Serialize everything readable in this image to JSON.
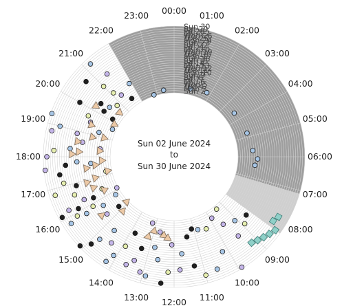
{
  "chart_data": {
    "type": "scatter",
    "subtype": "radial-clock",
    "center_line1": "Sun 02 June 2024",
    "center_line2": "to",
    "center_line3": "Sun 30 June 2024",
    "hour_labels": [
      "00:00",
      "01:00",
      "02:00",
      "03:00",
      "04:00",
      "05:00",
      "06:00",
      "07:00",
      "08:00",
      "09:00",
      "10:00",
      "11:00",
      "12:00",
      "13:00",
      "14:00",
      "15:00",
      "16:00",
      "17:00",
      "18:00",
      "19:00",
      "20:00",
      "21:00",
      "22:00",
      "23:00"
    ],
    "day_labels": [
      "Sun 2",
      "Mon 3",
      "Tue 4",
      "Wed 5",
      "Thu 6",
      "Fri 7",
      "Sat 8",
      "Sun 9",
      "Mon 10",
      "Tue 11",
      "Wed 12",
      "Thu 13",
      "Fri 14",
      "Sat 15",
      "Sun 16",
      "Mon 17",
      "Tue 18",
      "Wed 19",
      "Thu 20",
      "Fri 21",
      "Sat 22",
      "Sun 23",
      "Mon 24",
      "Tue 25",
      "Wed 26",
      "Thu 27",
      "Fri 28",
      "Sat 29",
      "Sun 30"
    ],
    "night_shading": {
      "start_hour": 22.0,
      "end_hour": 7.1,
      "twilight_end_hour": 8.4
    },
    "grid": true,
    "colors": {
      "night": "#9e9e9e",
      "twilight": "#cfcfcf",
      "ring": "#d6d6d6",
      "circle_fills": [
        "#e6efb0",
        "#c5b6ea",
        "#a7c6e6",
        "#1f1f1f"
      ],
      "circle_stroke": "#1a1a1a",
      "triangle_fill": "#ecc9a6",
      "triangle_stroke": "#7a6a5a",
      "square_fill": "#8fd0c8",
      "square_stroke": "#3a7a74"
    },
    "series": [
      {
        "marker": "circle",
        "points": [
          [
            2,
            22.8
          ],
          [
            3,
            23.4
          ],
          [
            4,
            0.9
          ],
          [
            5,
            1.8
          ],
          [
            6,
            3.6
          ],
          [
            7,
            4.8
          ],
          [
            8,
            5.7
          ],
          [
            9,
            6.4
          ],
          [
            10,
            6.1
          ],
          [
            2,
            16.1
          ],
          [
            4,
            15.8
          ],
          [
            6,
            15.2
          ],
          [
            8,
            16.4
          ],
          [
            11,
            15.7
          ],
          [
            13,
            16.2
          ],
          [
            15,
            15.9
          ],
          [
            17,
            16.3
          ],
          [
            19,
            15.8
          ],
          [
            21,
            16.1
          ],
          [
            23,
            15.9
          ],
          [
            25,
            16.2
          ],
          [
            27,
            15.8
          ],
          [
            29,
            16.1
          ],
          [
            3,
            9.4
          ],
          [
            5,
            9.9
          ],
          [
            7,
            10.8
          ],
          [
            9,
            11.4
          ],
          [
            12,
            12.1
          ],
          [
            14,
            12.8
          ],
          [
            16,
            13.3
          ],
          [
            18,
            13.9
          ],
          [
            20,
            14.4
          ],
          [
            22,
            14.8
          ],
          [
            24,
            17.4
          ],
          [
            26,
            18.2
          ],
          [
            28,
            18.8
          ],
          [
            30,
            19.3
          ],
          [
            3,
            19.6
          ],
          [
            5,
            20.1
          ],
          [
            7,
            20.8
          ],
          [
            9,
            21.3
          ],
          [
            11,
            21.9
          ],
          [
            13,
            20.4
          ],
          [
            15,
            19.7
          ],
          [
            17,
            18.9
          ],
          [
            19,
            18.3
          ],
          [
            21,
            17.7
          ],
          [
            23,
            17.1
          ],
          [
            25,
            13.6
          ],
          [
            27,
            12.9
          ],
          [
            29,
            12.4
          ],
          [
            6,
            11.1
          ],
          [
            8,
            10.4
          ],
          [
            10,
            9.6
          ],
          [
            12,
            9.1
          ],
          [
            14,
            8.6
          ],
          [
            16,
            8.9
          ],
          [
            18,
            9.4
          ],
          [
            20,
            10.2
          ],
          [
            22,
            11.3
          ],
          [
            24,
            12.2
          ],
          [
            26,
            13.1
          ],
          [
            28,
            14.2
          ],
          [
            30,
            15.1
          ],
          [
            4,
            17.2
          ],
          [
            6,
            18.4
          ],
          [
            8,
            19.2
          ],
          [
            10,
            20.2
          ],
          [
            12,
            21.1
          ],
          [
            14,
            18.6
          ],
          [
            16,
            17.8
          ],
          [
            18,
            16.9
          ],
          [
            20,
            16.6
          ],
          [
            22,
            13.4
          ],
          [
            24,
            14.1
          ],
          [
            26,
            14.9
          ],
          [
            28,
            16.8
          ],
          [
            30,
            17.6
          ],
          [
            5,
            21.6
          ],
          [
            9,
            20.5
          ],
          [
            13,
            19.5
          ],
          [
            17,
            21.0
          ],
          [
            21,
            20.0
          ],
          [
            25,
            19.0
          ],
          [
            29,
            18.0
          ],
          [
            19,
            12.6
          ],
          [
            23,
            11.8
          ],
          [
            27,
            11.0
          ],
          [
            11,
            13.8
          ],
          [
            15,
            14.6
          ],
          [
            7,
            12.7
          ],
          [
            4,
            13.2
          ],
          [
            10,
            17.7
          ],
          [
            24,
            20.7
          ],
          [
            28,
            21.2
          ],
          [
            20,
            21.4
          ],
          [
            26,
            10.6
          ],
          [
            30,
            9.9
          ],
          [
            16,
            11.7
          ],
          [
            12,
            15.3
          ]
        ]
      },
      {
        "marker": "triangle",
        "points": [
          [
            3,
            19.9
          ],
          [
            4,
            20.6
          ],
          [
            5,
            19.0
          ],
          [
            6,
            18.3
          ],
          [
            8,
            17.6
          ],
          [
            9,
            17.0
          ],
          [
            11,
            16.6
          ],
          [
            12,
            19.4
          ],
          [
            14,
            20.2
          ],
          [
            16,
            18.6
          ],
          [
            18,
            18.1
          ],
          [
            6,
            14.9
          ],
          [
            7,
            13.0
          ],
          [
            8,
            12.5
          ],
          [
            9,
            12.3
          ],
          [
            10,
            13.2
          ],
          [
            2,
            15.1
          ],
          [
            3,
            17.2
          ],
          [
            12,
            17.5
          ],
          [
            13,
            16.9
          ],
          [
            14,
            15.4
          ],
          [
            10,
            18.9
          ],
          [
            15,
            18.2
          ],
          [
            7,
            16.3
          ],
          [
            5,
            17.8
          ]
        ]
      },
      {
        "marker": "square",
        "points": [
          [
            24,
            9.2
          ],
          [
            25,
            9.0
          ],
          [
            26,
            8.8
          ],
          [
            27,
            8.6
          ],
          [
            28,
            8.4
          ],
          [
            25,
            8.2
          ],
          [
            26,
            8.0
          ]
        ]
      }
    ]
  }
}
